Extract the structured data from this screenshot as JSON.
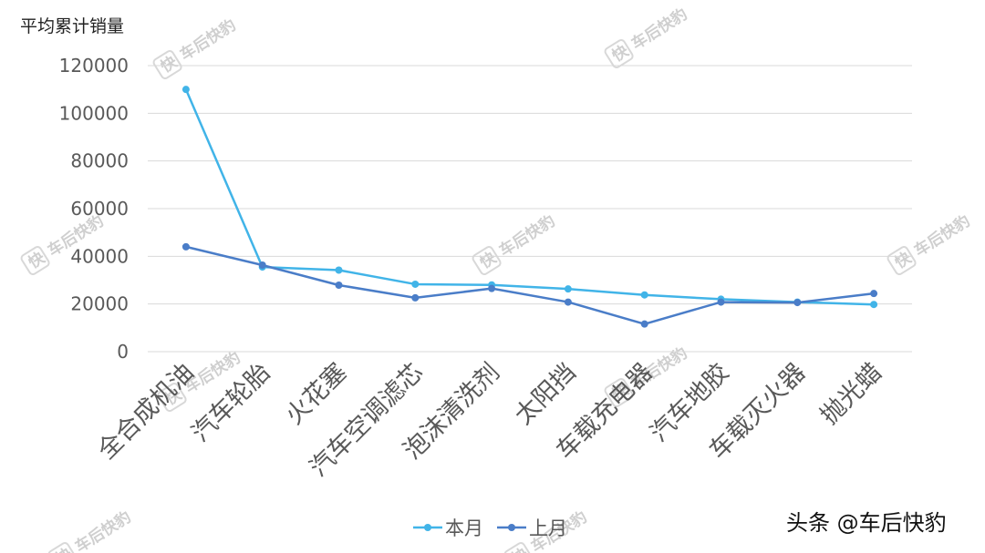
{
  "chart_data": {
    "type": "line",
    "ylabel": "平均累计销量",
    "ylim": [
      0,
      120000
    ],
    "yticks": [
      0,
      20000,
      40000,
      60000,
      80000,
      100000,
      120000
    ],
    "categories": [
      "全合成机油",
      "汽车轮胎",
      "火花塞",
      "汽车空调滤芯",
      "泡沫清洗剂",
      "太阳挡",
      "车载充电器",
      "汽车地胶",
      "车载灭火器",
      "抛光蜡"
    ],
    "series": [
      {
        "name": "本月",
        "color": "#41b4e8",
        "values": [
          110000,
          35500,
          34200,
          28300,
          28000,
          26300,
          23800,
          22000,
          20800,
          19800
        ]
      },
      {
        "name": "上月",
        "color": "#4a7dc8",
        "values": [
          44000,
          36300,
          27900,
          22600,
          26500,
          20800,
          11600,
          20800,
          20600,
          24400
        ]
      }
    ],
    "grid": true,
    "legend_position": "bottom-center"
  },
  "watermark": {
    "text": "车后快豹",
    "badge": "快"
  },
  "credit": "头条 @车后快豹"
}
